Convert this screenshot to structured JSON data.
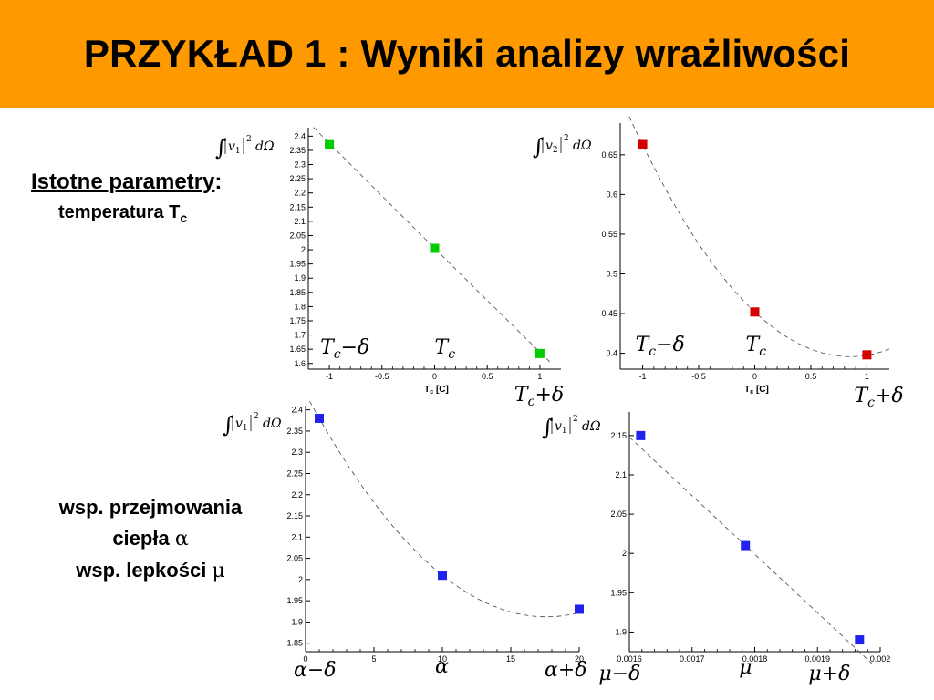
{
  "title": "PRZYKŁAD 1 : Wyniki analizy wrażliwości",
  "left_panel": {
    "params_heading": "Istotne parametry",
    "params_colon": ":",
    "params_item": "temperatura T",
    "params_item_sub": "c",
    "coef_line1": "wsp. przejmowania",
    "coef_line2": "ciepła",
    "coef_line2_symbol": "α",
    "coef_line3": "wsp. lepkości",
    "coef_line3_symbol": "μ"
  },
  "chart_data": [
    {
      "id": "p1",
      "type": "scatter",
      "ylabel_formula": {
        "var": "v",
        "index": "1",
        "power": "2",
        "measure": "dΩ"
      },
      "xlabel": "T",
      "xlabel_sub": "c",
      "xlabel_unit": " [C]",
      "color": "#00cc00",
      "xlim": [
        -1.2,
        1.2
      ],
      "ylim": [
        1.58,
        2.43
      ],
      "xticks": [
        -1,
        -0.5,
        0,
        0.5,
        1
      ],
      "xtick_labels": [
        "-1",
        "-0.5",
        "0",
        "0.5",
        "1"
      ],
      "yticks": [
        1.6,
        1.65,
        1.7,
        1.75,
        1.8,
        1.85,
        1.9,
        1.95,
        2,
        2.05,
        2.1,
        2.15,
        2.2,
        2.25,
        2.3,
        2.35,
        2.4
      ],
      "ytick_labels": [
        "1.6",
        "1.65",
        "1.7",
        "1.75",
        "1.8",
        "1.85",
        "1.9",
        "1.95",
        "2",
        "2.05",
        "2.1",
        "2.15",
        "2.2",
        "2.25",
        "2.3",
        "2.35",
        "2.4"
      ],
      "points": [
        {
          "x": -1,
          "y": 2.37
        },
        {
          "x": 0,
          "y": 2.005
        },
        {
          "x": 1,
          "y": 1.635
        }
      ],
      "fit_curve": {
        "a": 0.0025,
        "b": -0.3675,
        "c": 2.005,
        "x_from": -1.15,
        "x_to": 1.1
      },
      "param_labels": [
        {
          "base": "T",
          "sub": "c",
          "op": "−",
          "delta": "δ",
          "x": -1
        },
        {
          "base": "T",
          "sub": "c",
          "op": "",
          "delta": "",
          "x": 0
        },
        {
          "base": "T",
          "sub": "c",
          "op": "+",
          "delta": "δ",
          "x": 1
        }
      ]
    },
    {
      "id": "p2",
      "type": "scatter",
      "ylabel_formula": {
        "var": "v",
        "index": "2",
        "power": "2",
        "measure": "dΩ"
      },
      "xlabel": "T",
      "xlabel_sub": "c",
      "xlabel_unit": " [C]",
      "color": "#d40000",
      "xlim": [
        -1.2,
        1.2
      ],
      "ylim": [
        0.38,
        0.69
      ],
      "xticks": [
        -1,
        -0.5,
        0,
        0.5,
        1
      ],
      "xtick_labels": [
        "-1",
        "-0.5",
        "0",
        "0.5",
        "1"
      ],
      "yticks": [
        0.4,
        0.45,
        0.5,
        0.55,
        0.6,
        0.65
      ],
      "ytick_labels": [
        "0.4",
        "0.45",
        "0.5",
        "0.55",
        "0.6",
        "0.65"
      ],
      "points": [
        {
          "x": -1,
          "y": 0.663
        },
        {
          "x": 0,
          "y": 0.452
        },
        {
          "x": 1,
          "y": 0.398
        }
      ],
      "fit_curve": {
        "a": 0.078,
        "b": -0.1325,
        "c": 0.452,
        "x_from": -1.12,
        "x_to": 1.2
      },
      "param_labels": [
        {
          "base": "T",
          "sub": "c",
          "op": "−",
          "delta": "δ",
          "x": -1
        },
        {
          "base": "T",
          "sub": "c",
          "op": "",
          "delta": "",
          "x": 0
        },
        {
          "base": "T",
          "sub": "c",
          "op": "+",
          "delta": "δ",
          "x": 1
        }
      ]
    },
    {
      "id": "p3",
      "type": "scatter",
      "ylabel_formula": {
        "var": "v",
        "index": "1",
        "power": "2",
        "measure": "dΩ"
      },
      "color": "#2222ee",
      "xlim": [
        0,
        20
      ],
      "ylim": [
        1.83,
        2.41
      ],
      "xticks": [
        0,
        5,
        10,
        15,
        20
      ],
      "xtick_labels": [
        "0",
        "5",
        "10",
        "15",
        "20"
      ],
      "yticks": [
        1.85,
        1.9,
        1.95,
        2,
        2.05,
        2.1,
        2.15,
        2.2,
        2.25,
        2.3,
        2.35,
        2.4
      ],
      "ytick_labels": [
        "1.85",
        "1.9",
        "1.95",
        "2",
        "2.05",
        "2.1",
        "2.15",
        "2.2",
        "2.25",
        "2.3",
        "2.35",
        "2.4"
      ],
      "points": [
        {
          "x": 1,
          "y": 2.38
        },
        {
          "x": 10,
          "y": 2.01
        },
        {
          "x": 20,
          "y": 1.93
        }
      ],
      "fit_curve": {
        "a": 0.0017,
        "b": -0.0598,
        "c": 2.4381,
        "x_from": 0.3,
        "x_to": 20
      },
      "param_labels": [
        {
          "base": "α",
          "sub": "",
          "op": "−",
          "delta": "δ",
          "x": 1
        },
        {
          "base": "α",
          "sub": "",
          "op": "",
          "delta": "",
          "x": 10
        },
        {
          "base": "α",
          "sub": "",
          "op": "+",
          "delta": "δ",
          "x": 20
        }
      ]
    },
    {
      "id": "p4",
      "type": "scatter",
      "ylabel_formula": {
        "var": "v",
        "index": "1",
        "power": "2",
        "measure": "dΩ"
      },
      "color": "#2222ee",
      "xlim": [
        0.0016,
        0.002
      ],
      "ylim": [
        1.875,
        2.18
      ],
      "xticks": [
        0.0016,
        0.0017,
        0.0018,
        0.0019,
        0.002
      ],
      "xtick_labels": [
        "0.0016",
        "0.0017",
        "0.0018",
        "0.0019",
        "0.002"
      ],
      "yticks": [
        1.9,
        1.95,
        2,
        2.05,
        2.1,
        2.15
      ],
      "ytick_labels": [
        "1.9",
        "1.95",
        "2",
        "2.05",
        "2.1",
        "2.15"
      ],
      "points": [
        {
          "x": 0.001618,
          "y": 2.15
        },
        {
          "x": 0.001785,
          "y": 2.01
        },
        {
          "x": 0.001967,
          "y": 1.89
        }
      ],
      "fit_curve": {
        "a": 0,
        "b": -745,
        "c": 3.34,
        "x_from": 0.0016,
        "x_to": 0.00199
      },
      "param_labels": [
        {
          "base": "μ",
          "sub": "",
          "op": "−",
          "delta": "δ",
          "x": 0.001618
        },
        {
          "base": "μ",
          "sub": "",
          "op": "",
          "delta": "",
          "x": 0.001785
        },
        {
          "base": "μ",
          "sub": "",
          "op": "+",
          "delta": "δ",
          "x": 0.001967
        }
      ]
    }
  ]
}
